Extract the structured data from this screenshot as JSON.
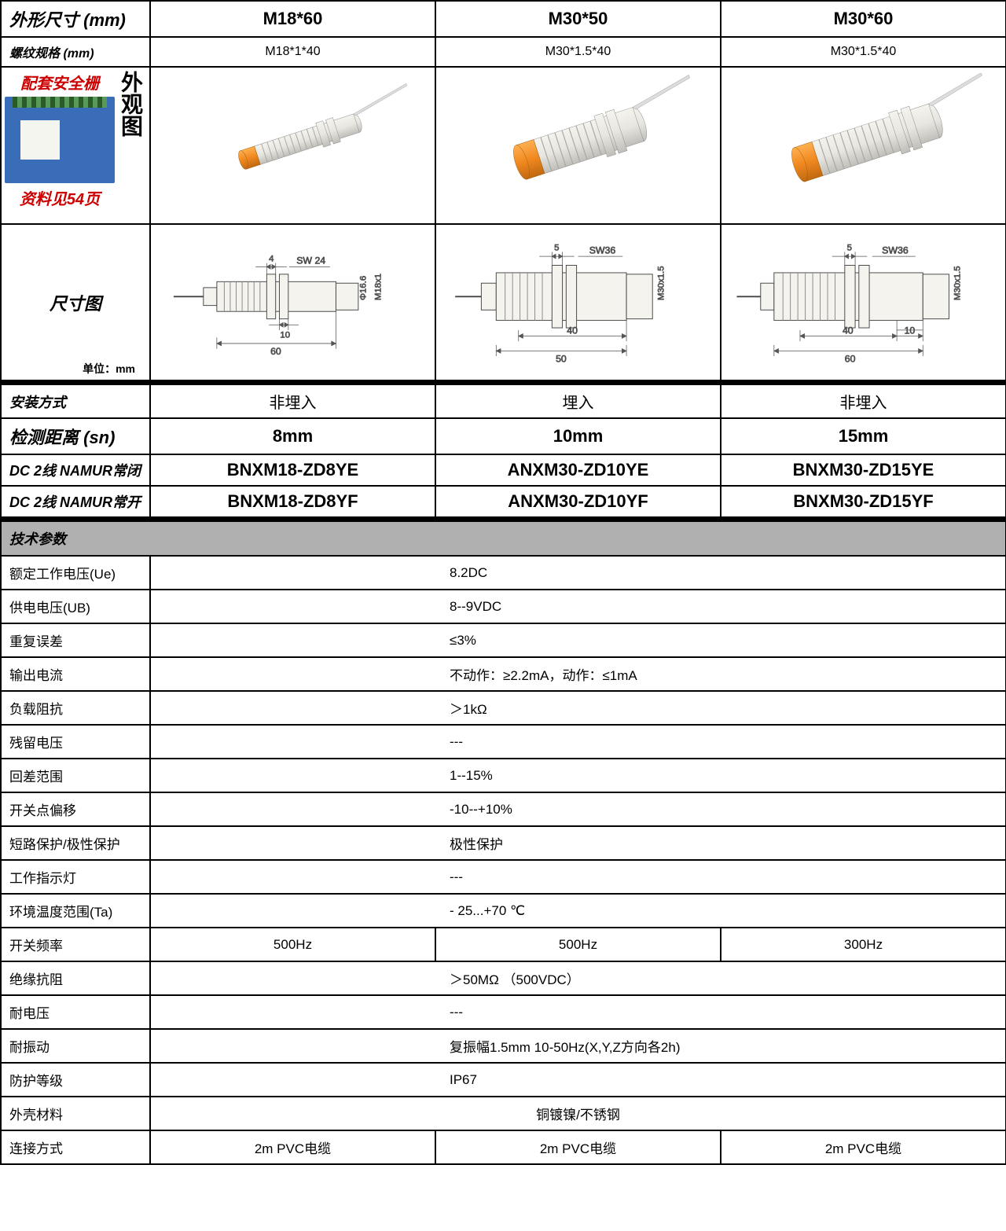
{
  "colors": {
    "border": "#000000",
    "bg": "#ffffff",
    "spec_header_bg": "#b0b0b0",
    "red": "#cc0000",
    "sensor_body": "#e8e6e0",
    "sensor_body_dark": "#c8c6c0",
    "sensor_tip": "#f08820",
    "sensor_tip_dark": "#d07010",
    "barrier_blue": "#3a6db8",
    "dim_line": "#666666"
  },
  "top": {
    "row1_label": "外形尺寸 (mm)",
    "row2_label": "螺纹规格 (mm)",
    "cols": [
      {
        "size": "M18*60",
        "thread": "M18*1*40"
      },
      {
        "size": "M30*50",
        "thread": "M30*1.5*40"
      },
      {
        "size": "M30*60",
        "thread": "M30*1.5*40"
      }
    ]
  },
  "appearance": {
    "side_title": "外观图",
    "barrier_title": "配套安全栅",
    "barrier_note": "资料见54页"
  },
  "dimension": {
    "label": "尺寸图",
    "unit_note": "单位：mm",
    "drawings": [
      {
        "sw": "SW 24",
        "thread": "M18x1",
        "dia": "Φ16.6",
        "gap": "4",
        "nut_w": "10",
        "len": "60"
      },
      {
        "sw": "SW36",
        "thread": "M30x1.5",
        "gap": "5",
        "body": "40",
        "len": "50"
      },
      {
        "sw": "SW36",
        "thread": "M30x1.5",
        "gap": "5",
        "body": "40",
        "nut_w": "10",
        "len": "60"
      }
    ]
  },
  "mid_rows": [
    {
      "label": "安装方式",
      "vals": [
        "非埋入",
        "埋入",
        "非埋入"
      ],
      "cls": "inst-row"
    },
    {
      "label": "检测距离 (sn)",
      "vals": [
        "8mm",
        "10mm",
        "15mm"
      ],
      "cls": "bold-row"
    },
    {
      "label": "DC 2线 NAMUR常闭",
      "vals": [
        "BNXM18-ZD8YE",
        "ANXM30-ZD10YE",
        "BNXM30-ZD15YE"
      ],
      "cls": "model-row"
    },
    {
      "label": "DC 2线 NAMUR常开",
      "vals": [
        "BNXM18-ZD8YF",
        "ANXM30-ZD10YF",
        "BNXM30-ZD15YF"
      ],
      "cls": "model-row"
    }
  ],
  "spec_header": "技术参数",
  "specs": [
    {
      "label": "额定工作电压(Ue)",
      "type": "single",
      "val": "8.2DC"
    },
    {
      "label": "供电电压(UB)",
      "type": "single",
      "val": "8--9VDC"
    },
    {
      "label": "重复误差",
      "type": "single",
      "val": "≤3%"
    },
    {
      "label": "输出电流",
      "type": "single",
      "val": "不动作：≥2.2mA，动作：≤1mA"
    },
    {
      "label": "负载阻抗",
      "type": "single",
      "val": "＞1kΩ"
    },
    {
      "label": "残留电压",
      "type": "single",
      "val": "---"
    },
    {
      "label": "回差范围",
      "type": "single",
      "val": "1--15%"
    },
    {
      "label": "开关点偏移",
      "type": "single",
      "val": "-10--+10%"
    },
    {
      "label": "短路保护/极性保护",
      "type": "single",
      "val": "极性保护"
    },
    {
      "label": "工作指示灯",
      "type": "single",
      "val": "---"
    },
    {
      "label": "环境温度范围(Ta)",
      "type": "single",
      "val": "- 25...+70 ℃"
    },
    {
      "label": "开关频率",
      "type": "multi",
      "vals": [
        "500Hz",
        "500Hz",
        "300Hz"
      ]
    },
    {
      "label": "绝缘抗阻",
      "type": "single",
      "val": "＞50MΩ （500VDC）"
    },
    {
      "label": "耐电压",
      "type": "single",
      "val": "---"
    },
    {
      "label": "耐振动",
      "type": "single",
      "val": "复振幅1.5mm 10-50Hz(X,Y,Z方向各2h)"
    },
    {
      "label": "防护等级",
      "type": "single",
      "val": "IP67"
    },
    {
      "label": "外壳材料",
      "type": "single_center",
      "val": "铜镀镍/不锈钢"
    },
    {
      "label": "连接方式",
      "type": "multi_center",
      "vals": [
        "2m PVC电缆",
        "2m PVC电缆",
        "2m PVC电缆"
      ]
    }
  ]
}
